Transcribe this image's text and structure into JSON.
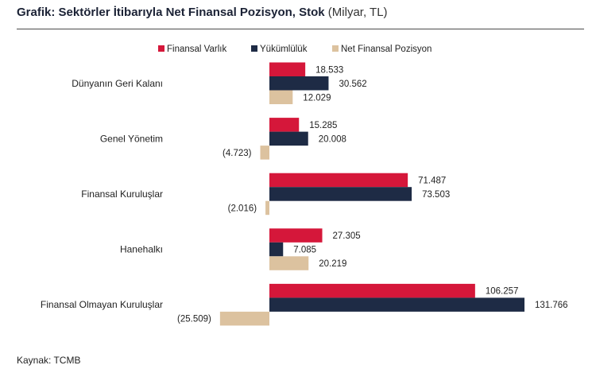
{
  "header": {
    "title_bold": "Grafik: Sektörler İtibarıyla Net Finansal Pozisyon, Stok",
    "title_unit": "(Milyar, TL)"
  },
  "footer": {
    "source": "Kaynak: TCMB"
  },
  "colors": {
    "asset": "#d5173a",
    "liability": "#1e2b45",
    "net": "#dcc29f",
    "text": "#222222"
  },
  "chart_data": {
    "type": "bar",
    "orientation": "horizontal",
    "categories": [
      "Dünyanın Geri Kalanı",
      "Genel Yönetim",
      "Finansal Kuruluşlar",
      "Hanehalkı",
      "Finansal Olmayan Kuruluşlar"
    ],
    "series": [
      {
        "name": "Finansal Varlık",
        "values": [
          18.533,
          15.285,
          71.487,
          27.305,
          106.257
        ],
        "labels": [
          "18.533",
          "15.285",
          "71.487",
          "27.305",
          "106.257"
        ]
      },
      {
        "name": "Yükümlülük",
        "values": [
          30.562,
          20.008,
          73.503,
          7.085,
          131.766
        ],
        "labels": [
          "30.562",
          "20.008",
          "73.503",
          "7.085",
          "131.766"
        ]
      },
      {
        "name": "Net Finansal Pozisyon",
        "values": [
          12.029,
          -4.723,
          -2.016,
          20.219,
          -25.509
        ],
        "labels": [
          "12.029",
          "(4.723)",
          "(2.016)",
          "20.219",
          "(25.509)"
        ]
      }
    ],
    "legend_position": "top",
    "grid": false
  }
}
